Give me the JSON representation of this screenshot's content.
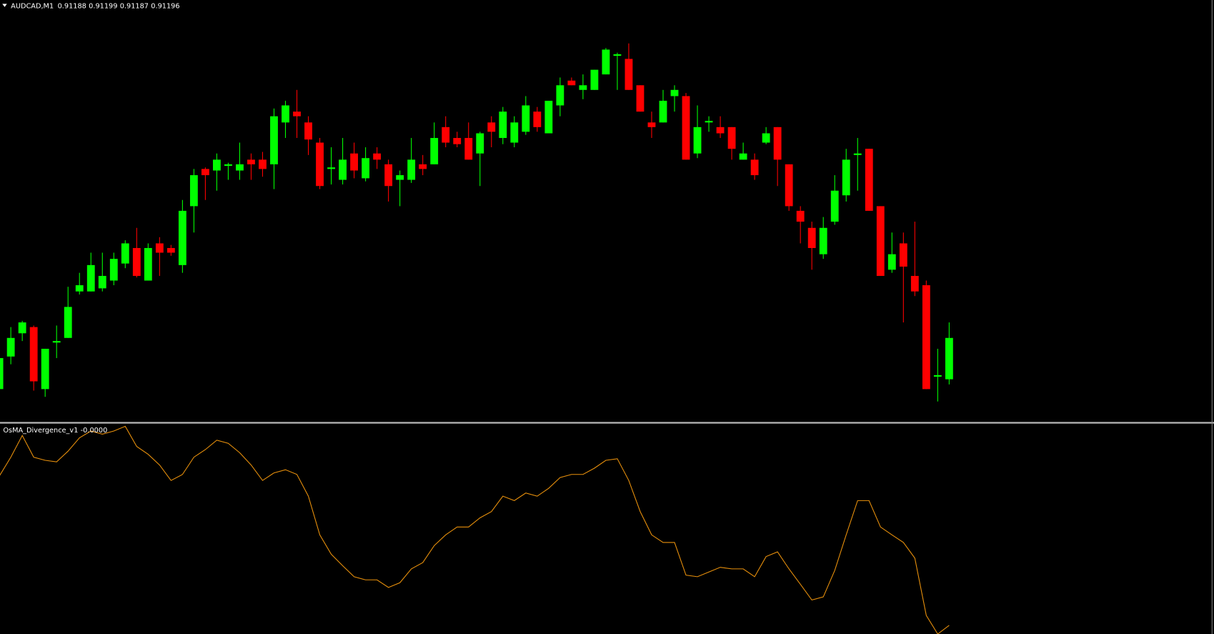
{
  "chart_data": [
    {
      "type": "candlestick",
      "title": "AUDCAD,M1",
      "up_color": "#00ff00",
      "down_color": "#ff0000",
      "ylim": [
        0.9117965,
        0.912614
      ],
      "open": [
        0.911861,
        0.911924,
        0.911969,
        0.911981,
        0.911861,
        0.911951,
        0.91196,
        0.91205,
        0.91205,
        0.912056,
        0.912071,
        0.912104,
        0.912134,
        0.912071,
        0.912143,
        0.912134,
        0.912101,
        0.912215,
        0.912287,
        0.912284,
        0.912293,
        0.912284,
        0.912305,
        0.912305,
        0.912296,
        0.912377,
        0.912398,
        0.912377,
        0.912338,
        0.912287,
        0.912266,
        0.912317,
        0.912269,
        0.912317,
        0.912296,
        0.912266,
        0.912266,
        0.912296,
        0.912296,
        0.912368,
        0.912347,
        0.912347,
        0.912317,
        0.912377,
        0.912347,
        0.912338,
        0.912359,
        0.912398,
        0.912356,
        0.91241,
        0.912458,
        0.91244,
        0.91244,
        0.91247,
        0.912506,
        0.9125,
        0.912449,
        0.912377,
        0.912377,
        0.912428,
        0.912428,
        0.912317,
        0.912377,
        0.912368,
        0.912368,
        0.912305,
        0.912305,
        0.912338,
        0.912368,
        0.912296,
        0.912206,
        0.912173,
        0.912122,
        0.912185,
        0.912236,
        0.912314,
        0.912326,
        0.912215,
        0.912092,
        0.912143,
        0.91208,
        0.912062,
        0.911885,
        0.91188
      ],
      "high": [
        0.911924,
        0.911981,
        0.911993,
        0.911984,
        0.911939,
        0.911984,
        0.912059,
        0.912086,
        0.912125,
        0.912125,
        0.912125,
        0.912149,
        0.912173,
        0.912143,
        0.912155,
        0.91214,
        0.912227,
        0.912287,
        0.91229,
        0.912317,
        0.912299,
        0.912338,
        0.912317,
        0.91232,
        0.912404,
        0.912419,
        0.91244,
        0.912389,
        0.912347,
        0.912329,
        0.912347,
        0.912338,
        0.912329,
        0.912329,
        0.912305,
        0.912284,
        0.912347,
        0.912314,
        0.912377,
        0.912389,
        0.912359,
        0.912377,
        0.912359,
        0.912389,
        0.912407,
        0.912389,
        0.912428,
        0.912407,
        0.912419,
        0.912464,
        0.912464,
        0.91247,
        0.912479,
        0.912521,
        0.912512,
        0.91253,
        0.912449,
        0.912398,
        0.91244,
        0.912449,
        0.912434,
        0.91241,
        0.912389,
        0.912389,
        0.912368,
        0.912338,
        0.912317,
        0.912368,
        0.912368,
        0.912296,
        0.912215,
        0.912185,
        0.912194,
        0.912275,
        0.912326,
        0.912347,
        0.912326,
        0.912215,
        0.912164,
        0.912164,
        0.912185,
        0.912071,
        0.911939,
        0.91199
      ],
      "low": [
        0.911858,
        0.911909,
        0.911954,
        0.911858,
        0.911846,
        0.911921,
        0.91196,
        0.912044,
        0.91205,
        0.91205,
        0.912062,
        0.912095,
        0.912077,
        0.912071,
        0.91208,
        0.912119,
        0.912086,
        0.912164,
        0.912227,
        0.912245,
        0.912266,
        0.912266,
        0.912266,
        0.912272,
        0.912248,
        0.912347,
        0.912347,
        0.912314,
        0.912248,
        0.912257,
        0.912257,
        0.912269,
        0.912263,
        0.912287,
        0.912224,
        0.912215,
        0.91226,
        0.912275,
        0.912296,
        0.912329,
        0.912329,
        0.912305,
        0.912254,
        0.912329,
        0.912335,
        0.912329,
        0.912353,
        0.912359,
        0.912356,
        0.912389,
        0.912449,
        0.912422,
        0.91244,
        0.91247,
        0.91244,
        0.91244,
        0.912398,
        0.912347,
        0.912377,
        0.912398,
        0.912305,
        0.912308,
        0.912359,
        0.912347,
        0.912305,
        0.912305,
        0.912266,
        0.912335,
        0.912254,
        0.912206,
        0.912143,
        0.912092,
        0.912113,
        0.912179,
        0.912224,
        0.912245,
        0.912206,
        0.91208,
        0.912086,
        0.91199,
        0.912041,
        0.911861,
        0.911837,
        0.91187
      ],
      "close": [
        0.911921,
        0.91196,
        0.91199,
        0.911876,
        0.911939,
        0.911954,
        0.91202,
        0.912062,
        0.912101,
        0.91208,
        0.912113,
        0.912143,
        0.91208,
        0.912134,
        0.912125,
        0.912125,
        0.912206,
        0.912275,
        0.912275,
        0.912305,
        0.912296,
        0.912296,
        0.912296,
        0.912287,
        0.912389,
        0.91241,
        0.912389,
        0.912344,
        0.912254,
        0.91229,
        0.912305,
        0.912284,
        0.912308,
        0.912305,
        0.912254,
        0.912275,
        0.912305,
        0.912287,
        0.912347,
        0.912338,
        0.912335,
        0.912305,
        0.912356,
        0.912359,
        0.912398,
        0.912377,
        0.91241,
        0.912368,
        0.912419,
        0.912449,
        0.912449,
        0.912449,
        0.912479,
        0.912518,
        0.912509,
        0.91244,
        0.912398,
        0.912368,
        0.912419,
        0.91244,
        0.912305,
        0.912368,
        0.91238,
        0.912356,
        0.912326,
        0.912317,
        0.912275,
        0.912356,
        0.912305,
        0.912215,
        0.912185,
        0.912134,
        0.912173,
        0.912245,
        0.912305,
        0.912317,
        0.912206,
        0.91208,
        0.912122,
        0.912098,
        0.91205,
        0.911861,
        0.911888,
        0.91196
      ]
    },
    {
      "type": "line",
      "title": "OsMA_Divergence_v1",
      "last_value_label": "-0.0000",
      "color": "#e8900c",
      "ylim": [
        -4e-05,
        4e-05
      ],
      "values": [
        2.04e-05,
        2.76e-05,
        3.59e-05,
        2.76e-05,
        2.64e-05,
        2.58e-05,
        2.99e-05,
        3.5e-05,
        3.76e-05,
        3.64e-05,
        3.76e-05,
        3.94e-05,
        3.17e-05,
        2.87e-05,
        2.46e-05,
        1.87e-05,
        2.1e-05,
        2.76e-05,
        3.05e-05,
        3.41e-05,
        3.29e-05,
        2.93e-05,
        2.46e-05,
        1.87e-05,
        2.16e-05,
        2.28e-05,
        2.1e-05,
        1.27e-05,
        -2.1e-06,
        -9.5e-06,
        -1.39e-05,
        -1.81e-05,
        -1.93e-05,
        -1.93e-05,
        -2.22e-05,
        -2.04e-05,
        -1.51e-05,
        -1.27e-05,
        -6.2e-06,
        -2.1e-06,
        9e-07,
        9e-07,
        4.4e-06,
        6.8e-06,
        1.27e-05,
        1.1e-05,
        1.39e-05,
        1.27e-05,
        1.57e-05,
        1.98e-05,
        2.1e-05,
        2.1e-05,
        2.34e-05,
        2.64e-05,
        2.7e-05,
        1.87e-05,
        6.8e-06,
        -2.1e-06,
        -5e-06,
        -5e-06,
        -1.75e-05,
        -1.81e-05,
        -1.63e-05,
        -1.45e-05,
        -1.51e-05,
        -1.51e-05,
        -1.81e-05,
        -1.04e-05,
        -8.6e-06,
        -1.51e-05,
        -2.1e-05,
        -2.7e-05,
        -2.58e-05,
        -1.57e-05,
        -2.1e-06,
        1.1e-05,
        1.1e-05,
        9e-07,
        -2.1e-06,
        -5e-06,
        -1.1e-05,
        -3.29e-05,
        -4e-05,
        -3.67e-05
      ]
    }
  ]
}
